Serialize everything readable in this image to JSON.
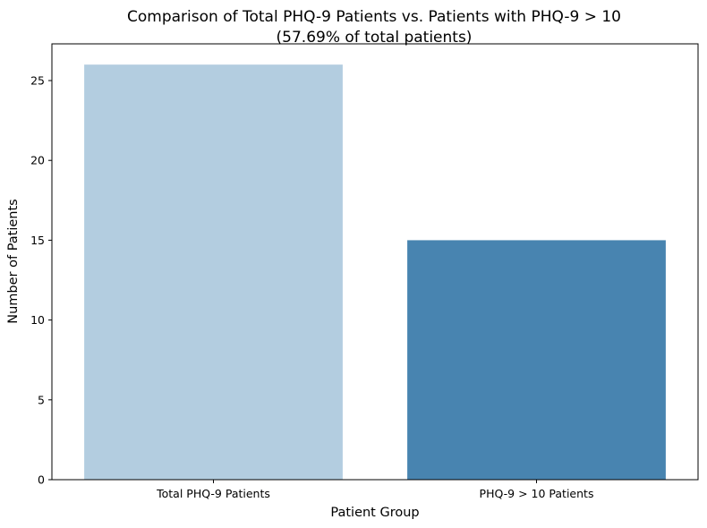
{
  "chart_data": {
    "type": "bar",
    "title": "Comparison of Total PHQ-9 Patients vs. Patients with PHQ-9 > 10",
    "subtitle": "(57.69% of total patients)",
    "xlabel": "Patient Group",
    "ylabel": "Number of Patients",
    "categories": [
      "Total PHQ-9 Patients",
      "PHQ-9 > 10 Patients"
    ],
    "values": [
      26,
      15
    ],
    "colors": [
      "#b3cde0",
      "#4884b0"
    ],
    "ylim": [
      0,
      27.3
    ],
    "yticks": [
      0,
      5,
      10,
      15,
      20,
      25
    ],
    "grid": false,
    "legend": "none"
  }
}
